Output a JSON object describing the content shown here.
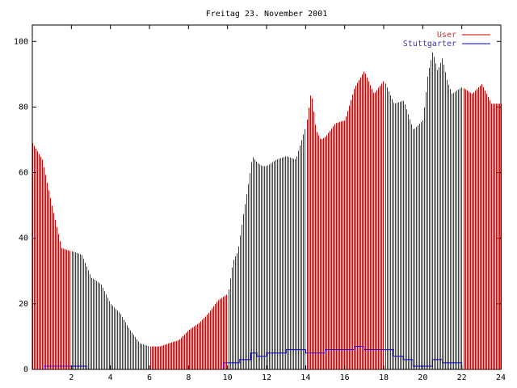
{
  "chart_data": {
    "type": "bar",
    "title": "Freitag 23. November 2001",
    "xlim": [
      0,
      24
    ],
    "ylim": [
      0,
      105
    ],
    "xticks": [
      2,
      4,
      6,
      8,
      10,
      12,
      14,
      16,
      18,
      20,
      22,
      24
    ],
    "yticks": [
      0,
      20,
      40,
      60,
      80,
      100
    ],
    "legend_position": "top-right",
    "colors": {
      "user": "#cc0000",
      "stuttgarter": "#0000cc"
    },
    "series": [
      {
        "name": "User",
        "style": "impulses",
        "x": [
          0,
          0.5,
          1,
          1.5,
          2,
          2.5,
          3,
          3.5,
          4,
          4.5,
          5,
          5.5,
          6,
          6.5,
          7,
          7.5,
          8,
          8.5,
          9,
          9.5,
          10,
          10.25,
          10.5,
          10.75,
          11,
          11.25,
          11.5,
          11.75,
          12,
          12.5,
          13,
          13.5,
          14,
          14.25,
          14.5,
          14.75,
          15,
          15.5,
          16,
          16.5,
          17,
          17.5,
          18,
          18.5,
          19,
          19.5,
          20,
          20.25,
          20.5,
          20.75,
          21,
          21.25,
          21.5,
          22,
          22.5,
          23,
          23.5,
          24
        ],
        "values": [
          69,
          64,
          50,
          37,
          36,
          35,
          28,
          26,
          20,
          17,
          12,
          8,
          7,
          7,
          8,
          9,
          12,
          14,
          17,
          21,
          23,
          33,
          36,
          46,
          55,
          65,
          63,
          62,
          62,
          64,
          65,
          64,
          74,
          85,
          73,
          70,
          71,
          75,
          76,
          86,
          91,
          84,
          88,
          81,
          82,
          73,
          76,
          90,
          97,
          91,
          95,
          88,
          84,
          86,
          84,
          87,
          81,
          81
        ]
      },
      {
        "name": "Stuttgarter",
        "style": "steps",
        "x": [
          0,
          0.6,
          2.8,
          9.8,
          10.6,
          11.2,
          11.5,
          12,
          13,
          14,
          15,
          16,
          16.5,
          17,
          18,
          18.5,
          19,
          19.5,
          20.5,
          21,
          21.5,
          22,
          24
        ],
        "values": [
          0,
          1,
          0,
          2,
          3,
          5,
          4,
          5,
          6,
          5,
          6,
          6,
          7,
          6,
          6,
          4,
          3,
          1,
          3,
          2,
          2,
          0,
          0
        ]
      }
    ]
  }
}
